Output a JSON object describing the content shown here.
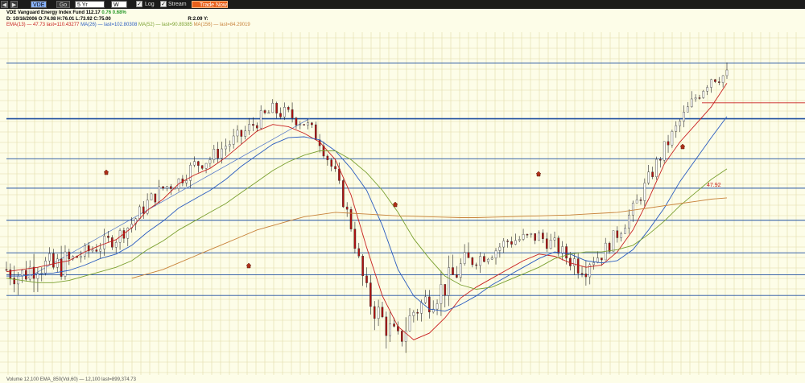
{
  "toolbar": {
    "symbol": "VDE",
    "go_label": "Go",
    "period": "5 Yr",
    "interval": "W",
    "log_label": "Log",
    "stream_label": "Stream",
    "trade_label": "Trade Now"
  },
  "header": {
    "symbol_name": "VDE Vanguard Energy Index Fund",
    "price": "112.17",
    "change": "0.76",
    "change_pct": "0.68%",
    "ohlc_line": "D: 10/16/2006 O:74.08 H:76.01 L:73.92 C:75.00",
    "r_label": "R:2.09",
    "y_label": "Y:",
    "ema13": "EMA(13) — 47.73 last=110.43277",
    "ma26": "MA(26) — last=102.80308",
    "ma52": "MA(52) — last=90.89385",
    "ma156": "MA(156) — last=84.29019"
  },
  "cursor_label": "47.92",
  "volume_label": "Volume 12,100 EMA_850(Vol,60) — 12,100 last=899,374.73",
  "colors": {
    "candle": "#b01010",
    "ema13": "#c82020",
    "ma26": "#2a5cc0",
    "ma52": "#7aa030",
    "ma156": "#c8823a",
    "trendline": "#4a70c8",
    "hline": "#1f4fa0",
    "grid": "#e2dca8",
    "up_color": "#2a9a2a"
  },
  "chart_data": {
    "type": "line",
    "interval": "weekly",
    "period": "5 years",
    "yscale": "linear",
    "y_unit": "price (unlabeled axis)",
    "ylim": [
      44,
      122
    ],
    "grid": true,
    "series": [
      {
        "name": "EMA(13)",
        "values": [
          67.5,
          68,
          68.5,
          69.3,
          70,
          72,
          73.5,
          74.8,
          77.5,
          81.5,
          84,
          87.5,
          89.5,
          91,
          93.5,
          96.5,
          99.5,
          101,
          100.5,
          99,
          97,
          93,
          85,
          73,
          62,
          55,
          52,
          53.5,
          57,
          61.5,
          64,
          66,
          68,
          70,
          71.5,
          71,
          69.5,
          68.5,
          69,
          72,
          77,
          84,
          92,
          97,
          101,
          105,
          110.4
        ]
      },
      {
        "name": "MA(26)",
        "values": [
          66.5,
          66.5,
          67,
          67.2,
          67.8,
          69,
          70.5,
          71.5,
          73.5,
          76.5,
          79,
          82,
          84,
          86,
          88.5,
          91.5,
          94,
          96.5,
          98,
          98.2,
          97.5,
          95,
          91,
          86,
          78,
          68,
          62,
          59,
          58.5,
          60,
          62,
          64.5,
          66.5,
          68.5,
          70.5,
          72,
          71.5,
          70,
          69.5,
          70,
          72.5,
          77,
          82,
          88,
          93,
          98,
          102.8
        ]
      },
      {
        "name": "MA(52)",
        "values": [
          66,
          65.5,
          65,
          65,
          65.5,
          66.5,
          67.5,
          68.5,
          70,
          72.5,
          74.5,
          77,
          79,
          81,
          83,
          85.5,
          88,
          90.5,
          92.5,
          94,
          95,
          95,
          93,
          90,
          86,
          81,
          75,
          70.5,
          66.5,
          64.5,
          63.5,
          64,
          65.5,
          67,
          68.5,
          70.5,
          71.5,
          72,
          72,
          72.5,
          73.5,
          76,
          79,
          82.5,
          85.5,
          88.5,
          90.9
        ]
      },
      {
        "name": "MA(156)",
        "values": [
          null,
          null,
          null,
          null,
          null,
          null,
          null,
          null,
          66,
          67,
          68,
          69.5,
          71,
          72.5,
          74,
          75.5,
          77,
          78,
          79,
          80,
          80.5,
          81,
          80.8,
          80.6,
          80.4,
          80.2,
          80.1,
          80,
          79.9,
          79.8,
          79.8,
          79.9,
          80,
          80.1,
          80.2,
          80.3,
          80.4,
          80.6,
          80.8,
          81,
          81.5,
          82,
          82.5,
          83,
          83.5,
          84,
          84.3
        ]
      }
    ],
    "candles_close": [
      68,
      66.8,
      69.5,
      68.2,
      70,
      71.8,
      73.5,
      75.2,
      78.5,
      83.2,
      86.5,
      88.2,
      91.8,
      93.2,
      96.2,
      98.5,
      101.8,
      104.2,
      103.2,
      101.5,
      97.5,
      89.5,
      78,
      62,
      56.5,
      51.5,
      58.5,
      61.5,
      64.2,
      68.5,
      70.5,
      72,
      74.5,
      75,
      75.5,
      73.5,
      70,
      69.5,
      71.5,
      76.2,
      81.5,
      88.5,
      95.5,
      101.5,
      107.2,
      111.8,
      112.17
    ],
    "horizontal_levels": [
      115,
      102.3,
      93.2,
      86.5,
      79.2,
      71.8,
      66.8,
      62.1
    ]
  }
}
